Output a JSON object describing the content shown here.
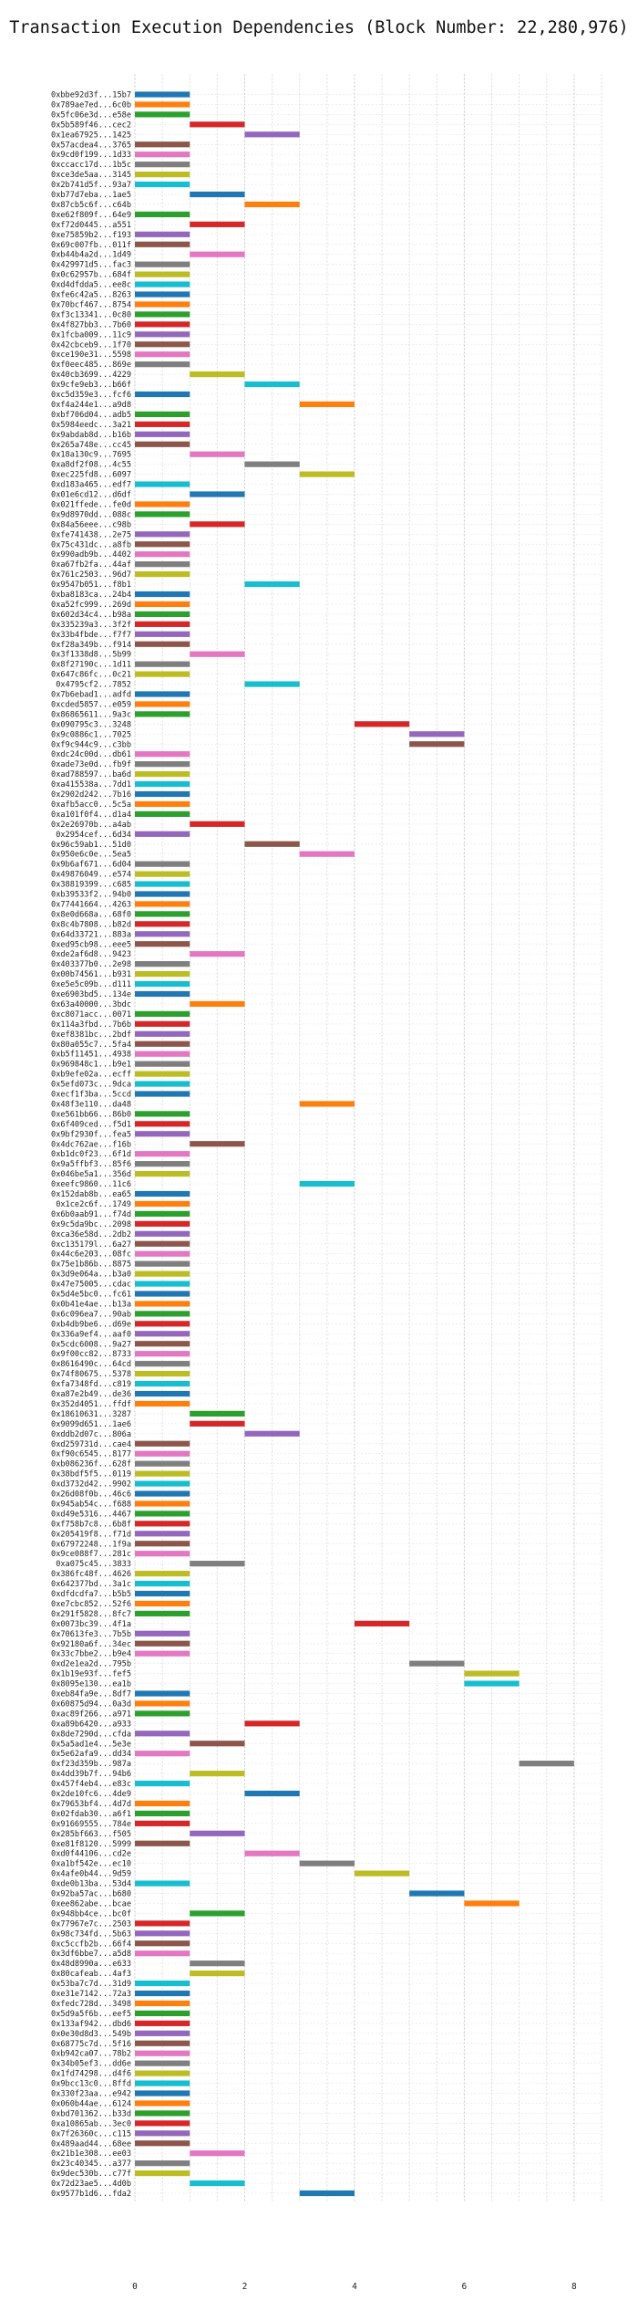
{
  "chart_data": {
    "type": "bar",
    "orientation": "horizontal",
    "title": "Transaction Execution Dependencies (Block Number: 22,280,976)",
    "xlabel": "",
    "ylabel": "",
    "xlim": [
      0,
      8.5
    ],
    "xticks": [
      0,
      2,
      4,
      6,
      8
    ],
    "grid": true,
    "legend": "none",
    "palette": [
      "#1f77b4",
      "#ff7f0e",
      "#2ca02c",
      "#d62728",
      "#9467bd",
      "#8c564b",
      "#e377c2",
      "#7f7f7f",
      "#bcbd22",
      "#17becf"
    ],
    "rows": [
      {
        "tx": "0xbbe92d3f...15b7",
        "start": 0,
        "end": 1
      },
      {
        "tx": "0x789ae7ed...6c0b",
        "start": 0,
        "end": 1
      },
      {
        "tx": "0x5fc06e3d...e58e",
        "start": 0,
        "end": 1
      },
      {
        "tx": "0x5b589f46...cec2",
        "start": 1,
        "end": 2
      },
      {
        "tx": "0x1ea67925...1425",
        "start": 2,
        "end": 3
      },
      {
        "tx": "0x57acdea4...3765",
        "start": 0,
        "end": 1
      },
      {
        "tx": "0x9cd0f199...1d33",
        "start": 0,
        "end": 1
      },
      {
        "tx": "0xccacc17d...1b5c",
        "start": 0,
        "end": 1
      },
      {
        "tx": "0xce3de5aa...3145",
        "start": 0,
        "end": 1
      },
      {
        "tx": "0x2b741d5f...93a7",
        "start": 0,
        "end": 1
      },
      {
        "tx": "0xb77d7eba...1ae5",
        "start": 1,
        "end": 2
      },
      {
        "tx": "0x87cb5c6f...c64b",
        "start": 2,
        "end": 3
      },
      {
        "tx": "0xe62f809f...64e9",
        "start": 0,
        "end": 1
      },
      {
        "tx": "0xf72d0445...a551",
        "start": 1,
        "end": 2
      },
      {
        "tx": "0xe75859b2...f193",
        "start": 0,
        "end": 1
      },
      {
        "tx": "0x69c007fb...011f",
        "start": 0,
        "end": 1
      },
      {
        "tx": "0xb44b4a2d...1d49",
        "start": 1,
        "end": 2
      },
      {
        "tx": "0x429971d5...fac3",
        "start": 0,
        "end": 1
      },
      {
        "tx": "0x0c62957b...684f",
        "start": 0,
        "end": 1
      },
      {
        "tx": "0xd4dfdda5...ee8c",
        "start": 0,
        "end": 1
      },
      {
        "tx": "0xfe6c42a5...8263",
        "start": 0,
        "end": 1
      },
      {
        "tx": "0x70bcf467...8754",
        "start": 0,
        "end": 1
      },
      {
        "tx": "0xf3c13341...0c80",
        "start": 0,
        "end": 1
      },
      {
        "tx": "0x4f827bb3...7b60",
        "start": 0,
        "end": 1
      },
      {
        "tx": "0x1fcba009...11c9",
        "start": 0,
        "end": 1
      },
      {
        "tx": "0x42cbceb9...1f70",
        "start": 0,
        "end": 1
      },
      {
        "tx": "0xce190e31...5598",
        "start": 0,
        "end": 1
      },
      {
        "tx": "0xf0eec485...869e",
        "start": 0,
        "end": 1
      },
      {
        "tx": "0x40cb3699...4229",
        "start": 1,
        "end": 2
      },
      {
        "tx": "0x9cfe9eb3...b66f",
        "start": 2,
        "end": 3
      },
      {
        "tx": "0xc5d359e3...fcf6",
        "start": 0,
        "end": 1
      },
      {
        "tx": "0xf4a244e1...a9d8",
        "start": 3,
        "end": 4
      },
      {
        "tx": "0xbf706d04...adb5",
        "start": 0,
        "end": 1
      },
      {
        "tx": "0x5984eedc...3a21",
        "start": 0,
        "end": 1
      },
      {
        "tx": "0x9abdab8d...b16b",
        "start": 0,
        "end": 1
      },
      {
        "tx": "0x265a748e...cc45",
        "start": 0,
        "end": 1
      },
      {
        "tx": "0x18a130c9...7695",
        "start": 1,
        "end": 2
      },
      {
        "tx": "0xa8df2f08...4c55",
        "start": 2,
        "end": 3
      },
      {
        "tx": "0xec225fd8...6097",
        "start": 3,
        "end": 4
      },
      {
        "tx": "0xd183a465...edf7",
        "start": 0,
        "end": 1
      },
      {
        "tx": "0x01e6cd12...d6df",
        "start": 1,
        "end": 2
      },
      {
        "tx": "0x021ffede...fe0d",
        "start": 0,
        "end": 1
      },
      {
        "tx": "0x9d8970dd...088c",
        "start": 0,
        "end": 1
      },
      {
        "tx": "0x84a56eee...c98b",
        "start": 1,
        "end": 2
      },
      {
        "tx": "0xfe741438...2e75",
        "start": 0,
        "end": 1
      },
      {
        "tx": "0x75c431dc...a8fb",
        "start": 0,
        "end": 1
      },
      {
        "tx": "0x990adb9b...4402",
        "start": 0,
        "end": 1
      },
      {
        "tx": "0xa67fb2fa...44af",
        "start": 0,
        "end": 1
      },
      {
        "tx": "0x761c2503...96d7",
        "start": 0,
        "end": 1
      },
      {
        "tx": "0x9547b051...f8b1",
        "start": 2,
        "end": 3
      },
      {
        "tx": "0xba8183ca...24b4",
        "start": 0,
        "end": 1
      },
      {
        "tx": "0xa52fc999...269d",
        "start": 0,
        "end": 1
      },
      {
        "tx": "0x602d34c4...b98a",
        "start": 0,
        "end": 1
      },
      {
        "tx": "0x335239a3...3f2f",
        "start": 0,
        "end": 1
      },
      {
        "tx": "0x33b4fbde...f7f7",
        "start": 0,
        "end": 1
      },
      {
        "tx": "0xf28a349b...f914",
        "start": 0,
        "end": 1
      },
      {
        "tx": "0x3f1338d8...5b99",
        "start": 1,
        "end": 2
      },
      {
        "tx": "0x8f27190c...1d11",
        "start": 0,
        "end": 1
      },
      {
        "tx": "0x647c86fc...0c21",
        "start": 0,
        "end": 1
      },
      {
        "tx": "0x4795cf2...7852",
        "start": 2,
        "end": 3
      },
      {
        "tx": "0x7b6ebad1...adfd",
        "start": 0,
        "end": 1
      },
      {
        "tx": "0xcded5857...e059",
        "start": 0,
        "end": 1
      },
      {
        "tx": "0x86865611...9a3c",
        "start": 0,
        "end": 1
      },
      {
        "tx": "0x090795c3...3248",
        "start": 4,
        "end": 5
      },
      {
        "tx": "0x9c0886c1...7025",
        "start": 5,
        "end": 6
      },
      {
        "tx": "0xf9c944c9...c3bb",
        "start": 5,
        "end": 6
      },
      {
        "tx": "0xdc24c00d...db61",
        "start": 0,
        "end": 1
      },
      {
        "tx": "0xade73e0d...fb9f",
        "start": 0,
        "end": 1
      },
      {
        "tx": "0xad788597...ba6d",
        "start": 0,
        "end": 1
      },
      {
        "tx": "0xa415538a...7dd1",
        "start": 0,
        "end": 1
      },
      {
        "tx": "0x2902d242...7b16",
        "start": 0,
        "end": 1
      },
      {
        "tx": "0xafb5acc0...5c5a",
        "start": 0,
        "end": 1
      },
      {
        "tx": "0xa101f0f4...d1a4",
        "start": 0,
        "end": 1
      },
      {
        "tx": "0x2e26970b...a4ab",
        "start": 1,
        "end": 2
      },
      {
        "tx": "0x2954cef...6d34",
        "start": 0,
        "end": 1
      },
      {
        "tx": "0x96c59ab1...51d0",
        "start": 2,
        "end": 3
      },
      {
        "tx": "0x950e6c0e...5ea5",
        "start": 3,
        "end": 4
      },
      {
        "tx": "0x9b6af671...6d04",
        "start": 0,
        "end": 1
      },
      {
        "tx": "0x49876049...e574",
        "start": 0,
        "end": 1
      },
      {
        "tx": "0x38819399...c685",
        "start": 0,
        "end": 1
      },
      {
        "tx": "0xb39533f2...94b0",
        "start": 0,
        "end": 1
      },
      {
        "tx": "0x77441664...4263",
        "start": 0,
        "end": 1
      },
      {
        "tx": "0x8e0d668a...68f0",
        "start": 0,
        "end": 1
      },
      {
        "tx": "0x8c4b7808...b82d",
        "start": 0,
        "end": 1
      },
      {
        "tx": "0x64d33721...883a",
        "start": 0,
        "end": 1
      },
      {
        "tx": "0xed95cb98...eee5",
        "start": 0,
        "end": 1
      },
      {
        "tx": "0xde2af6d8...9423",
        "start": 1,
        "end": 2
      },
      {
        "tx": "0x403377b0...2e98",
        "start": 0,
        "end": 1
      },
      {
        "tx": "0x00b74561...b931",
        "start": 0,
        "end": 1
      },
      {
        "tx": "0xe5e5c09b...d111",
        "start": 0,
        "end": 1
      },
      {
        "tx": "0xe6903bd5...134e",
        "start": 0,
        "end": 1
      },
      {
        "tx": "0x63a40000...3bdc",
        "start": 1,
        "end": 2
      },
      {
        "tx": "0xc8071acc...0071",
        "start": 0,
        "end": 1
      },
      {
        "tx": "0x114a3fbd...7b6b",
        "start": 0,
        "end": 1
      },
      {
        "tx": "0xef8381bc...2bdf",
        "start": 0,
        "end": 1
      },
      {
        "tx": "0x80a055c7...5fa4",
        "start": 0,
        "end": 1
      },
      {
        "tx": "0xb5f11451...4938",
        "start": 0,
        "end": 1
      },
      {
        "tx": "0x969848c1...b9e1",
        "start": 0,
        "end": 1
      },
      {
        "tx": "0xb9efe02a...ecff",
        "start": 0,
        "end": 1
      },
      {
        "tx": "0x5efd073c...9dca",
        "start": 0,
        "end": 1
      },
      {
        "tx": "0xecf1f3ba...5ccd",
        "start": 0,
        "end": 1
      },
      {
        "tx": "0x48f3e110...da48",
        "start": 3,
        "end": 4
      },
      {
        "tx": "0xe561bb66...86b0",
        "start": 0,
        "end": 1
      },
      {
        "tx": "0x6f409ced...f5d1",
        "start": 0,
        "end": 1
      },
      {
        "tx": "0x9bf2930f...fea5",
        "start": 0,
        "end": 1
      },
      {
        "tx": "0x4dc762ae...f16b",
        "start": 1,
        "end": 2
      },
      {
        "tx": "0xb1dc0f23...6f1d",
        "start": 0,
        "end": 1
      },
      {
        "tx": "0x9a5ffbf3...85f6",
        "start": 0,
        "end": 1
      },
      {
        "tx": "0x046be5a1...356d",
        "start": 0,
        "end": 1
      },
      {
        "tx": "0xeefc9860...11c6",
        "start": 3,
        "end": 4
      },
      {
        "tx": "0x152dab8b...ea65",
        "start": 0,
        "end": 1
      },
      {
        "tx": "0x1ce2c6f...1749",
        "start": 0,
        "end": 1
      },
      {
        "tx": "0x6b0aab91...f74d",
        "start": 0,
        "end": 1
      },
      {
        "tx": "0x9c5da9bc...2098",
        "start": 0,
        "end": 1
      },
      {
        "tx": "0xca36e58d...2db2",
        "start": 0,
        "end": 1
      },
      {
        "tx": "0xc135179l...6a27",
        "start": 0,
        "end": 1
      },
      {
        "tx": "0x44c6e203...08fc",
        "start": 0,
        "end": 1
      },
      {
        "tx": "0x75e1b86b...8875",
        "start": 0,
        "end": 1
      },
      {
        "tx": "0x3d9e064a...b3a0",
        "start": 0,
        "end": 1
      },
      {
        "tx": "0x47e75005...cdac",
        "start": 0,
        "end": 1
      },
      {
        "tx": "0x5d4e5bc0...fc61",
        "start": 0,
        "end": 1
      },
      {
        "tx": "0x0b41e4ae...b13a",
        "start": 0,
        "end": 1
      },
      {
        "tx": "0x6c096ea7...90ab",
        "start": 0,
        "end": 1
      },
      {
        "tx": "0xb4db9be6...d69e",
        "start": 0,
        "end": 1
      },
      {
        "tx": "0x336a9ef4...aaf0",
        "start": 0,
        "end": 1
      },
      {
        "tx": "0x5cdc6008...9a27",
        "start": 0,
        "end": 1
      },
      {
        "tx": "0x9f00cc82...8733",
        "start": 0,
        "end": 1
      },
      {
        "tx": "0x8616490c...64cd",
        "start": 0,
        "end": 1
      },
      {
        "tx": "0x74f80675...5378",
        "start": 0,
        "end": 1
      },
      {
        "tx": "0xfa7348fd...c819",
        "start": 0,
        "end": 1
      },
      {
        "tx": "0xa87e2b49...de36",
        "start": 0,
        "end": 1
      },
      {
        "tx": "0x352d4051...ffdf",
        "start": 0,
        "end": 1
      },
      {
        "tx": "0x18610631...3287",
        "start": 1,
        "end": 2
      },
      {
        "tx": "0x9099d651...1ae6",
        "start": 1,
        "end": 2
      },
      {
        "tx": "0xddb2d07c...806a",
        "start": 2,
        "end": 3
      },
      {
        "tx": "0xd259731d...cae4",
        "start": 0,
        "end": 1
      },
      {
        "tx": "0xf90c6545...8177",
        "start": 0,
        "end": 1
      },
      {
        "tx": "0xb086236f...628f",
        "start": 0,
        "end": 1
      },
      {
        "tx": "0x38bdf5f5...0119",
        "start": 0,
        "end": 1
      },
      {
        "tx": "0xd3732d42...9902",
        "start": 0,
        "end": 1
      },
      {
        "tx": "0x26d08f0b...46c6",
        "start": 0,
        "end": 1
      },
      {
        "tx": "0x945ab54c...f688",
        "start": 0,
        "end": 1
      },
      {
        "tx": "0xd49e5316...4467",
        "start": 0,
        "end": 1
      },
      {
        "tx": "0xf758b7c8...6b8f",
        "start": 0,
        "end": 1
      },
      {
        "tx": "0x205419f8...f71d",
        "start": 0,
        "end": 1
      },
      {
        "tx": "0x67972248...1f9a",
        "start": 0,
        "end": 1
      },
      {
        "tx": "0x9ce088f7...281c",
        "start": 0,
        "end": 1
      },
      {
        "tx": "0xa075c45...3833",
        "start": 1,
        "end": 2
      },
      {
        "tx": "0x386fc48f...4626",
        "start": 0,
        "end": 1
      },
      {
        "tx": "0x642377bd...3a1c",
        "start": 0,
        "end": 1
      },
      {
        "tx": "0xdfdcdfa7...b5b5",
        "start": 0,
        "end": 1
      },
      {
        "tx": "0xe7cbc852...52f6",
        "start": 0,
        "end": 1
      },
      {
        "tx": "0x291f5828...8fc7",
        "start": 0,
        "end": 1
      },
      {
        "tx": "0x0073bc39...4f1a",
        "start": 4,
        "end": 5
      },
      {
        "tx": "0x70613fe3...7b5b",
        "start": 0,
        "end": 1
      },
      {
        "tx": "0x92180a6f...34ec",
        "start": 0,
        "end": 1
      },
      {
        "tx": "0x33c7bbe2...b9e4",
        "start": 0,
        "end": 1
      },
      {
        "tx": "0xd2e1ea2d...795b",
        "start": 5,
        "end": 6
      },
      {
        "tx": "0x1b19e93f...fef5",
        "start": 6,
        "end": 7
      },
      {
        "tx": "0x8095e130...ea1b",
        "start": 6,
        "end": 7
      },
      {
        "tx": "0xeb84fa9e...8df7",
        "start": 0,
        "end": 1
      },
      {
        "tx": "0x60875d94...0a3d",
        "start": 0,
        "end": 1
      },
      {
        "tx": "0xac89f266...a971",
        "start": 0,
        "end": 1
      },
      {
        "tx": "0xa89b6420...a933",
        "start": 2,
        "end": 3
      },
      {
        "tx": "0x8de7290d...cfda",
        "start": 0,
        "end": 1
      },
      {
        "tx": "0x5a5ad1e4...5e3e",
        "start": 1,
        "end": 2
      },
      {
        "tx": "0x5e62afa9...dd34",
        "start": 0,
        "end": 1
      },
      {
        "tx": "0xf23d359b...987a",
        "start": 7,
        "end": 8
      },
      {
        "tx": "0x4dd39b7f...94b6",
        "start": 1,
        "end": 2
      },
      {
        "tx": "0x457f4eb4...e83c",
        "start": 0,
        "end": 1
      },
      {
        "tx": "0x2de10fc6...4de9",
        "start": 2,
        "end": 3
      },
      {
        "tx": "0x79653bf4...4d7d",
        "start": 0,
        "end": 1
      },
      {
        "tx": "0x02fdab30...a6f1",
        "start": 0,
        "end": 1
      },
      {
        "tx": "0x91669555...784e",
        "start": 0,
        "end": 1
      },
      {
        "tx": "0x285bf663...f505",
        "start": 1,
        "end": 2
      },
      {
        "tx": "0xe81f8120...5999",
        "start": 0,
        "end": 1
      },
      {
        "tx": "0xd0f44106...cd2e",
        "start": 2,
        "end": 3
      },
      {
        "tx": "0xa1bf542e...ec10",
        "start": 3,
        "end": 4
      },
      {
        "tx": "0x4afe0b44...9d59",
        "start": 4,
        "end": 5
      },
      {
        "tx": "0xde0b13ba...53d4",
        "start": 0,
        "end": 1
      },
      {
        "tx": "0x92ba57ac...b680",
        "start": 5,
        "end": 6
      },
      {
        "tx": "0xee862abe...bcae",
        "start": 6,
        "end": 7
      },
      {
        "tx": "0x948bb4ce...bc0f",
        "start": 1,
        "end": 2
      },
      {
        "tx": "0x77967e7c...2503",
        "start": 0,
        "end": 1
      },
      {
        "tx": "0x98c734fd...5b63",
        "start": 0,
        "end": 1
      },
      {
        "tx": "0xc5ccfb2b...66f4",
        "start": 0,
        "end": 1
      },
      {
        "tx": "0x3df6bbe7...a5d8",
        "start": 0,
        "end": 1
      },
      {
        "tx": "0x48d8990a...e633",
        "start": 1,
        "end": 2
      },
      {
        "tx": "0x80cafeab...4af3",
        "start": 1,
        "end": 2
      },
      {
        "tx": "0x53ba7c7d...31d9",
        "start": 0,
        "end": 1
      },
      {
        "tx": "0xe31e7142...72a3",
        "start": 0,
        "end": 1
      },
      {
        "tx": "0xfedc728d...3498",
        "start": 0,
        "end": 1
      },
      {
        "tx": "0x5d9a5f6b...eef5",
        "start": 0,
        "end": 1
      },
      {
        "tx": "0x133af942...dbd6",
        "start": 0,
        "end": 1
      },
      {
        "tx": "0x0e30d8d3...549b",
        "start": 0,
        "end": 1
      },
      {
        "tx": "0x68775c7d...5f16",
        "start": 0,
        "end": 1
      },
      {
        "tx": "0xb942ca07...78b2",
        "start": 0,
        "end": 1
      },
      {
        "tx": "0x34b05ef3...dd6e",
        "start": 0,
        "end": 1
      },
      {
        "tx": "0x1fd74298...d4f6",
        "start": 0,
        "end": 1
      },
      {
        "tx": "0x9bcc13c0...8ffd",
        "start": 0,
        "end": 1
      },
      {
        "tx": "0x330f23aa...e942",
        "start": 0,
        "end": 1
      },
      {
        "tx": "0x060b44ae...6124",
        "start": 0,
        "end": 1
      },
      {
        "tx": "0xbd701362...b33d",
        "start": 0,
        "end": 1
      },
      {
        "tx": "0xa10865ab...3ec0",
        "start": 0,
        "end": 1
      },
      {
        "tx": "0x7f26360c...c115",
        "start": 0,
        "end": 1
      },
      {
        "tx": "0x489aad44...68ee",
        "start": 0,
        "end": 1
      },
      {
        "tx": "0x21b1e308...ee03",
        "start": 1,
        "end": 2
      },
      {
        "tx": "0x23c40345...a377",
        "start": 0,
        "end": 1
      },
      {
        "tx": "0x9dec530b...c77f",
        "start": 0,
        "end": 1
      },
      {
        "tx": "0x72d23ae5...4d0b",
        "start": 1,
        "end": 2
      },
      {
        "tx": "0x9577b1d6...fda2",
        "start": 3,
        "end": 4
      }
    ]
  }
}
